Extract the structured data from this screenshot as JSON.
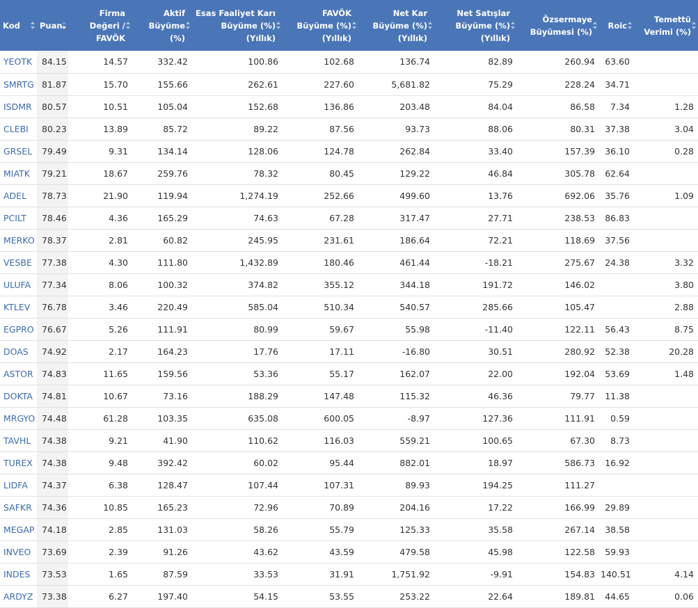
{
  "columns": [
    {
      "key": "kod",
      "label": "Kod",
      "align": "left"
    },
    {
      "key": "puan",
      "label": "Puan",
      "align": "left"
    },
    {
      "key": "fd_favok",
      "label": "Firma Değeri / FAVÖK"
    },
    {
      "key": "aktif",
      "label": "Aktif Büyüme (%)"
    },
    {
      "key": "efk",
      "label": "Esas Faaliyet Karı Büyüme (%) (Yıllık)"
    },
    {
      "key": "favok",
      "label": "FAVÖK Büyüme (%) (Yıllık)"
    },
    {
      "key": "netkar",
      "label": "Net Kar Büyüme (%) (Yıllık)"
    },
    {
      "key": "satis",
      "label": "Net Satışlar Büyüme (%) (Yıllık)"
    },
    {
      "key": "ozsermaye",
      "label": "Özsermaye Büyümesi (%)"
    },
    {
      "key": "roic",
      "label": "Roic"
    },
    {
      "key": "temettu",
      "label": "Temettü Verimi (%)"
    }
  ],
  "sorted_column": "puan",
  "colors": {
    "header_bg": "#4a76b8",
    "link": "#3b6bb0",
    "row_border": "#dde3ea",
    "score_bg": "#f3f3f3"
  },
  "rows": [
    [
      "YEOTK",
      "84.15",
      "14.57",
      "332.42",
      "100.86",
      "102.68",
      "136.74",
      "82.89",
      "260.94",
      "63.60",
      ""
    ],
    [
      "SMRTG",
      "81.87",
      "15.70",
      "155.66",
      "262.61",
      "227.60",
      "5,681.82",
      "75.29",
      "228.24",
      "34.71",
      ""
    ],
    [
      "ISDMR",
      "80.57",
      "10.51",
      "105.04",
      "152.68",
      "136.86",
      "203.48",
      "84.04",
      "86.58",
      "7.34",
      "1.28"
    ],
    [
      "CLEBI",
      "80.23",
      "13.89",
      "85.72",
      "89.22",
      "87.56",
      "93.73",
      "88.06",
      "80.31",
      "37.38",
      "3.04"
    ],
    [
      "GRSEL",
      "79.49",
      "9.31",
      "134.14",
      "128.06",
      "124.78",
      "262.84",
      "33.40",
      "157.39",
      "36.10",
      "0.28"
    ],
    [
      "MIATK",
      "79.21",
      "18.67",
      "259.76",
      "78.32",
      "80.45",
      "129.22",
      "46.84",
      "305.78",
      "62.64",
      ""
    ],
    [
      "ADEL",
      "78.73",
      "21.90",
      "119.94",
      "1,274.19",
      "252.66",
      "499.60",
      "13.76",
      "692.06",
      "35.76",
      "1.09"
    ],
    [
      "PCILT",
      "78.46",
      "4.36",
      "165.29",
      "74.63",
      "67.28",
      "317.47",
      "27.71",
      "238.53",
      "86.83",
      ""
    ],
    [
      "MERKO",
      "78.37",
      "2.81",
      "60.82",
      "245.95",
      "231.61",
      "186.64",
      "72.21",
      "118.69",
      "37.56",
      ""
    ],
    [
      "VESBE",
      "77.38",
      "4.30",
      "111.80",
      "1,432.89",
      "180.46",
      "461.44",
      "-18.21",
      "275.67",
      "24.38",
      "3.32"
    ],
    [
      "ULUFA",
      "77.34",
      "8.06",
      "100.32",
      "374.82",
      "355.12",
      "344.18",
      "191.72",
      "146.02",
      "",
      "3.80"
    ],
    [
      "KTLEV",
      "76.78",
      "3.46",
      "220.49",
      "585.04",
      "510.34",
      "540.57",
      "285.66",
      "105.47",
      "",
      "2.88"
    ],
    [
      "EGPRO",
      "76.67",
      "5.26",
      "111.91",
      "80.99",
      "59.67",
      "55.98",
      "-11.40",
      "122.11",
      "56.43",
      "8.75"
    ],
    [
      "DOAS",
      "74.92",
      "2.17",
      "164.23",
      "17.76",
      "17.11",
      "-16.80",
      "30.51",
      "280.92",
      "52.38",
      "20.28"
    ],
    [
      "ASTOR",
      "74.83",
      "11.65",
      "159.56",
      "53.36",
      "55.17",
      "162.07",
      "22.00",
      "192.04",
      "53.69",
      "1.48"
    ],
    [
      "DOKTA",
      "74.81",
      "10.67",
      "73.16",
      "188.29",
      "147.48",
      "115.32",
      "46.36",
      "79.77",
      "11.38",
      ""
    ],
    [
      "MRGYO",
      "74.48",
      "61.28",
      "103.35",
      "635.08",
      "600.05",
      "-8.97",
      "127.36",
      "111.91",
      "0.59",
      ""
    ],
    [
      "TAVHL",
      "74.38",
      "9.21",
      "41.90",
      "110.62",
      "116.03",
      "559.21",
      "100.65",
      "67.30",
      "8.73",
      ""
    ],
    [
      "TUREX",
      "74.38",
      "9.48",
      "392.42",
      "60.02",
      "95.44",
      "882.01",
      "18.97",
      "586.73",
      "16.92",
      ""
    ],
    [
      "LIDFA",
      "74.37",
      "6.38",
      "128.47",
      "107.44",
      "107.31",
      "89.93",
      "194.25",
      "111.27",
      "",
      ""
    ],
    [
      "SAFKR",
      "74.36",
      "10.85",
      "165.23",
      "72.96",
      "70.89",
      "204.16",
      "17.22",
      "166.99",
      "29.89",
      ""
    ],
    [
      "MEGAP",
      "74.18",
      "2.85",
      "131.03",
      "58.26",
      "55.79",
      "125.33",
      "35.58",
      "267.14",
      "38.58",
      ""
    ],
    [
      "INVEO",
      "73.69",
      "2.39",
      "91.26",
      "43.62",
      "43.59",
      "479.58",
      "45.98",
      "122.58",
      "59.93",
      ""
    ],
    [
      "INDES",
      "73.53",
      "1.65",
      "87.59",
      "33.53",
      "31.91",
      "1,751.92",
      "-9.91",
      "154.83",
      "140.51",
      "4.14"
    ],
    [
      "ARDYZ",
      "73.38",
      "6.27",
      "197.40",
      "54.15",
      "53.55",
      "253.22",
      "22.64",
      "189.81",
      "44.65",
      "0.06"
    ]
  ]
}
